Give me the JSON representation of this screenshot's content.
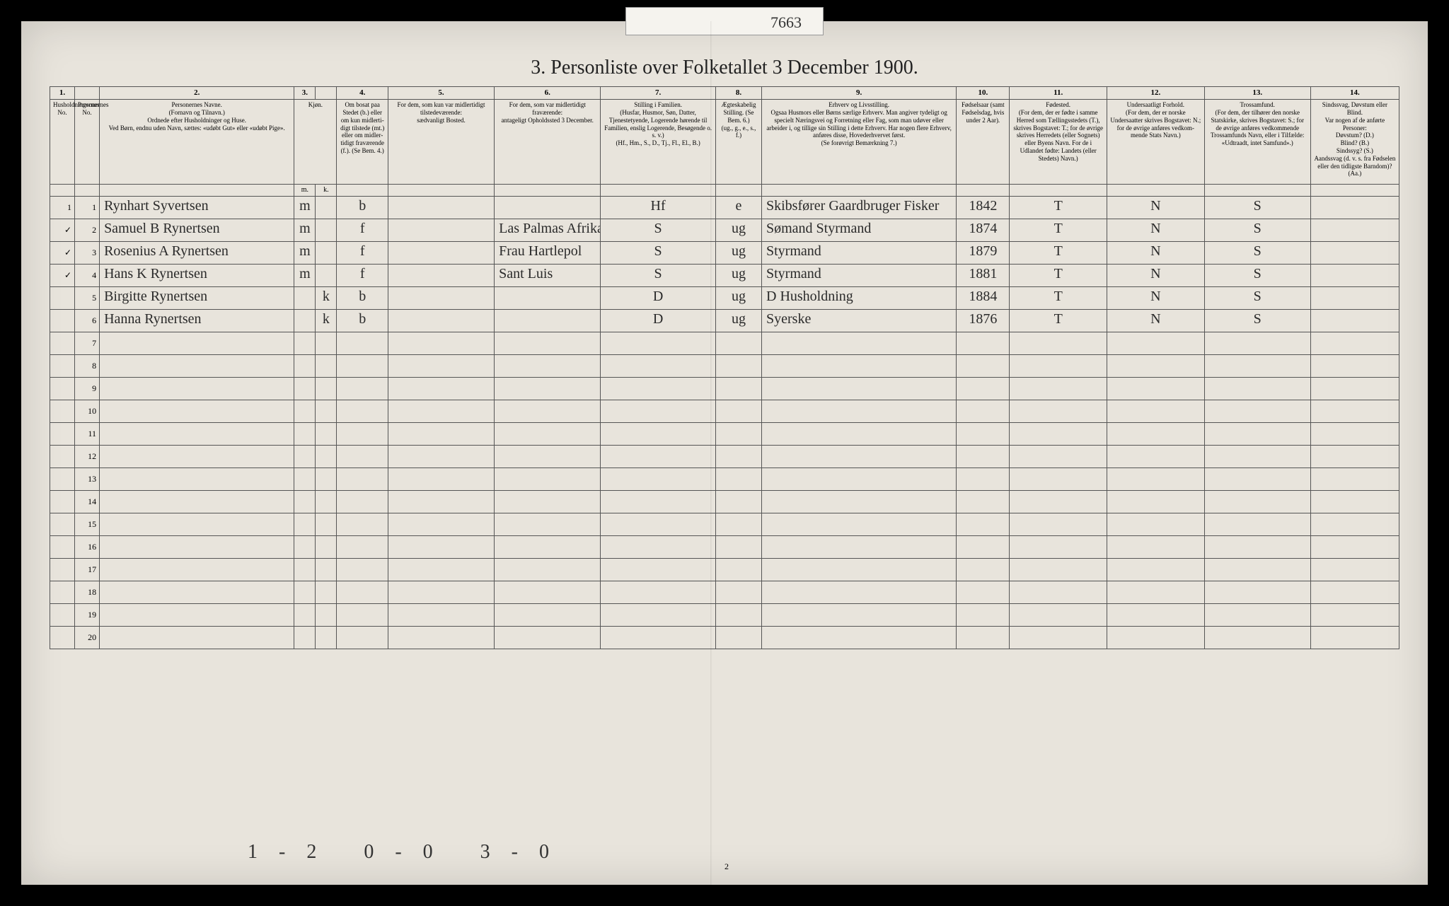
{
  "tabNumber": "7663",
  "title": "3. Personliste over Folketallet 3 December 1900.",
  "pageNumber": "2",
  "footer": "1-2  0-0  3-0",
  "columns": {
    "widths": [
      28,
      28,
      220,
      24,
      24,
      58,
      120,
      120,
      130,
      52,
      220,
      60,
      110,
      110,
      120,
      100
    ],
    "nums": [
      "1.",
      "",
      "2.",
      "3.",
      "",
      "4.",
      "5.",
      "6.",
      "7.",
      "8.",
      "9.",
      "10.",
      "11.",
      "12.",
      "13.",
      "14."
    ],
    "headers": [
      "Husholdningernes No.",
      "Personernes No.",
      "Personernes Navne.\n(Fornavn og Tilnavn.)\nOrdnede efter Husholdninger og Huse.\nVed Børn, endnu uden Navn, sættes: «udøbt Gut» eller «udøbt Pige».",
      "Kjøn.",
      "",
      "Om bosat paa Stedet (b.) eller om kun midlerti­digt tilstede (mt.) eller om midler­tidigt fra­værende (f.). (Se Bem. 4.)",
      "For dem, som kun var midlertidigt tilstede­værende:\nsædvanligt Bosted.",
      "For dem, som var midlertidigt fraværende:\nantageligt Opholdssted 3 December.",
      "Stilling i Familien.\n(Husfar, Husmor, Søn, Datter, Tjenestetyende, Lo­gerende hørende til Familien, enslig Logerende, Besøgende o. s. v.)\n(Hf., Hm., S., D., Tj., Fl., El., B.)",
      "Ægteska­belig Stilling. (Se Bem. 6.)\n(ug., g., e., s., f.)",
      "Erhverv og Livsstilling.\nOgsaa Husmors eller Børns særlige Erhverv. Man angiver tydeligt og specielt Næringsvei og For­retning eller Fag, som man udøver eller arbeider i, og tillige sin Stilling i dette Erhverv. Har nogen flere Erhverv, anføres disse, Hoved­erhvervet først.\n(Se forøvrigt Bemærkning 7.)",
      "Fødsels­aar (samt Fødsels­dag, hvis under 2 Aar).",
      "Fødested.\n(For dem, der er fødte i samme Herred som Tællingsstedets (T.), skrives Bogstavet: T.; for de øvrige skrives Herredets (eller Sognets) eller Byens Navn. For de i Udlandet fødte: Landets (eller Stedets) Navn.)",
      "Undersaatligt Forhold.\n(For dem, der er norske Undersaatter skrives Bogstavet: N.; for de øvrige anføres vedkom­mende Stats Navn.)",
      "Trossamfund.\n(For dem, der tilhører den norske Statskirke, skrives Bogstavet: S.; for de øvrige anføres vedkommende Trossam­funds Navn, eller i Til­fælde: «Udtraadt, intet Samfund».)",
      "Sindssvag, Døvstum eller Blind.\nVar nogen af de anførte Personer:\nDøvstum? (D.)\nBlind? (B.)\nSindssyg? (S.)\nAandssvag (d. v. s. fra Fødselen eller den tid­ligste Barndom)? (Aa.)"
    ],
    "subheaders": [
      "",
      "",
      "",
      "m.",
      "k.",
      "",
      "",
      "",
      "",
      "",
      "",
      "",
      "",
      "",
      "",
      ""
    ]
  },
  "rows": [
    {
      "hh": "1",
      "p": "1",
      "name": "Rynhart Syvertsen",
      "m": "m",
      "k": "",
      "res": "b",
      "bosted": "",
      "opphold": "",
      "fam": "Hf",
      "eg": "e",
      "erhverv": "Skibsfører Gaardbruger Fisker",
      "aar": "1842",
      "fsted": "T",
      "nat": "N",
      "tro": "S",
      "sind": ""
    },
    {
      "hh": "✓",
      "p": "2",
      "name": "Samuel B Rynertsen",
      "m": "m",
      "k": "",
      "res": "f",
      "bosted": "",
      "opphold": "Las Palmas Afrika",
      "fam": "S",
      "eg": "ug",
      "erhverv": "Sømand Styrmand",
      "aar": "1874",
      "fsted": "T",
      "nat": "N",
      "tro": "S",
      "sind": ""
    },
    {
      "hh": "✓",
      "p": "3",
      "name": "Rosenius A Rynertsen",
      "m": "m",
      "k": "",
      "res": "f",
      "bosted": "",
      "opphold": "Frau Hartlepol",
      "fam": "S",
      "eg": "ug",
      "erhverv": "Styrmand",
      "aar": "1879",
      "fsted": "T",
      "nat": "N",
      "tro": "S",
      "sind": ""
    },
    {
      "hh": "✓",
      "p": "4",
      "name": "Hans K Rynertsen",
      "m": "m",
      "k": "",
      "res": "f",
      "bosted": "",
      "opphold": "Sant Luis",
      "fam": "S",
      "eg": "ug",
      "erhverv": "Styrmand",
      "aar": "1881",
      "fsted": "T",
      "nat": "N",
      "tro": "S",
      "sind": ""
    },
    {
      "hh": "",
      "p": "5",
      "name": "Birgitte Rynertsen",
      "m": "",
      "k": "k",
      "res": "b",
      "bosted": "",
      "opphold": "",
      "fam": "D",
      "eg": "ug",
      "erhverv": "D Husholdning",
      "aar": "1884",
      "fsted": "T",
      "nat": "N",
      "tro": "S",
      "sind": ""
    },
    {
      "hh": "",
      "p": "6",
      "name": "Hanna Rynertsen",
      "m": "",
      "k": "k",
      "res": "b",
      "bosted": "",
      "opphold": "",
      "fam": "D",
      "eg": "ug",
      "erhverv": "Syerske",
      "aar": "1876",
      "fsted": "T",
      "nat": "N",
      "tro": "S",
      "sind": ""
    }
  ],
  "emptyRows": 14,
  "colors": {
    "paper": "#e8e4dc",
    "ink": "#2a2a2a",
    "border": "#555"
  }
}
